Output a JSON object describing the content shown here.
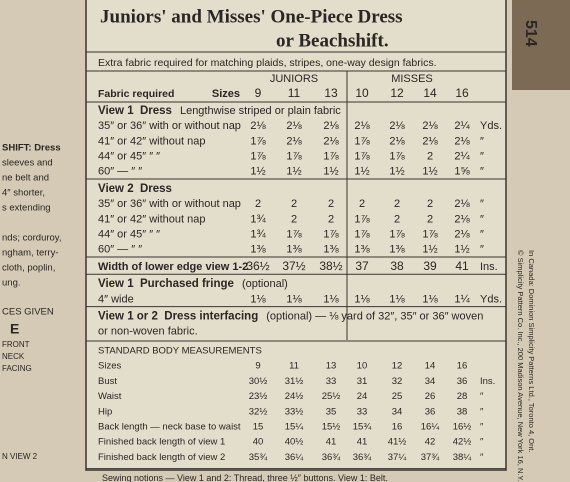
{
  "header": {
    "title_line1": "Juniors' and Misses' One-Piece Dress",
    "title_line2": "or Beachshift.",
    "pattern_number": "514"
  },
  "note": "Extra fabric required for matching plaids, stripes, one-way design fabrics.",
  "fabric_table": {
    "label": "Fabric required",
    "sizes_label": "Sizes",
    "juniors": "JUNIORS",
    "misses": "MISSES",
    "sizes": [
      "9",
      "11",
      "13",
      "10",
      "12",
      "14",
      "16"
    ],
    "sections": [
      {
        "heading": "View 1  Dress",
        "subheading": "Lengthwise striped or plain fabric",
        "rows": [
          {
            "label": "35″ or 36″ with or without nap",
            "values": [
              "2⅛",
              "2⅛",
              "2⅛",
              "2⅛",
              "2⅛",
              "2⅛",
              "2¼"
            ],
            "unit": "Yds."
          },
          {
            "label": "41″ or 42″ without nap",
            "values": [
              "1⅞",
              "2⅛",
              "2⅛",
              "1⅞",
              "2⅛",
              "2⅛",
              "2⅛"
            ],
            "unit": "″"
          },
          {
            "label": "44″ or 45″    ″    ″",
            "values": [
              "1⅞",
              "1⅞",
              "1⅞",
              "1⅞",
              "1⅞",
              "2",
              "2¼"
            ],
            "unit": "″"
          },
          {
            "label": "60″    —    ″    ″",
            "values": [
              "1½",
              "1½",
              "1½",
              "1½",
              "1½",
              "1½",
              "1⅝"
            ],
            "unit": "″"
          }
        ]
      },
      {
        "heading": "View 2  Dress",
        "rows": [
          {
            "label": "35″ or 36″ with or without nap",
            "values": [
              "2",
              "2",
              "2",
              "2",
              "2",
              "2",
              "2⅛"
            ],
            "unit": "″"
          },
          {
            "label": "41″ or 42″ without nap",
            "values": [
              "1¾",
              "2",
              "2",
              "1⅞",
              "2",
              "2",
              "2⅛"
            ],
            "unit": "″"
          },
          {
            "label": "44″ or 45″    ″    ″",
            "values": [
              "1¾",
              "1⅞",
              "1⅞",
              "1⅞",
              "1⅞",
              "1⅞",
              "2⅛"
            ],
            "unit": "″"
          },
          {
            "label": "60″    —    ″    ″",
            "values": [
              "1⅜",
              "1⅜",
              "1⅜",
              "1⅜",
              "1⅜",
              "1½",
              "1½"
            ],
            "unit": "″"
          }
        ]
      },
      {
        "rows": [
          {
            "label": "Width of lower edge view 1-2",
            "values": [
              "36½",
              "37½",
              "38½",
              "37",
              "38",
              "39",
              "41"
            ],
            "unit": "Ins."
          }
        ]
      },
      {
        "heading": "View 1  Purchased fringe",
        "subheading": "(optional)",
        "rows": [
          {
            "label": "4″ wide",
            "values": [
              "1⅛",
              "1⅛",
              "1⅛",
              "1⅛",
              "1⅛",
              "1⅛",
              "1¼"
            ],
            "unit": "Yds."
          }
        ]
      },
      {
        "heading": "View 1 or 2  Dress interfacing",
        "subheading": "(optional) — ⅛ yard of 32″, 35″ or 36″ woven",
        "rows": [
          {
            "label": "or non-woven fabric."
          }
        ]
      }
    ]
  },
  "body_measurements": {
    "heading": "STANDARD BODY MEASUREMENTS",
    "rows": [
      {
        "label": "Sizes",
        "values": [
          "9",
          "11",
          "13",
          "10",
          "12",
          "14",
          "16"
        ]
      },
      {
        "label": "Bust",
        "values": [
          "30½",
          "31½",
          "33",
          "31",
          "32",
          "34",
          "36"
        ],
        "unit": "Ins."
      },
      {
        "label": "Waist",
        "values": [
          "23½",
          "24½",
          "25½",
          "24",
          "25",
          "26",
          "28"
        ],
        "unit": "″"
      },
      {
        "label": "Hip",
        "values": [
          "32½",
          "33½",
          "35",
          "33",
          "34",
          "36",
          "38"
        ],
        "unit": "″"
      },
      {
        "label": "Back length — neck base to waist",
        "values": [
          "15",
          "15¼",
          "15½",
          "15¾",
          "16",
          "16¼",
          "16½"
        ],
        "unit": "″"
      },
      {
        "label": "Finished back length of view 1",
        "values": [
          "40",
          "40½",
          "41",
          "41",
          "41½",
          "42",
          "42½"
        ],
        "unit": "″"
      },
      {
        "label": "Finished back length of view 2",
        "values": [
          "35¾",
          "36¼",
          "36¾",
          "36¾",
          "37¼",
          "37¾",
          "38¼"
        ],
        "unit": "″"
      }
    ]
  },
  "sewing_notions": "Sewing notions — View 1 and 2: Thread, three ½″ buttons. View 1: Belt.",
  "side_panel": [
    "SHIFT: Dress",
    "sleeves and",
    "ne belt and",
    "4″ shorter,",
    "s extending",
    "nds; corduroy,",
    "ngham, terry-",
    "cloth, poplin,",
    "ung.",
    "CES GIVEN",
    "E",
    "FRONT",
    "NECK",
    "FACING",
    "N VIEW 2"
  ],
  "imprint": [
    "© Simplicity Pattern Co. Inc., 200 Madison Avenue, New York 16, N.Y.",
    "In Canada: Dominion Simplicity Patterns Ltd., Toronto 4, Ont."
  ]
}
